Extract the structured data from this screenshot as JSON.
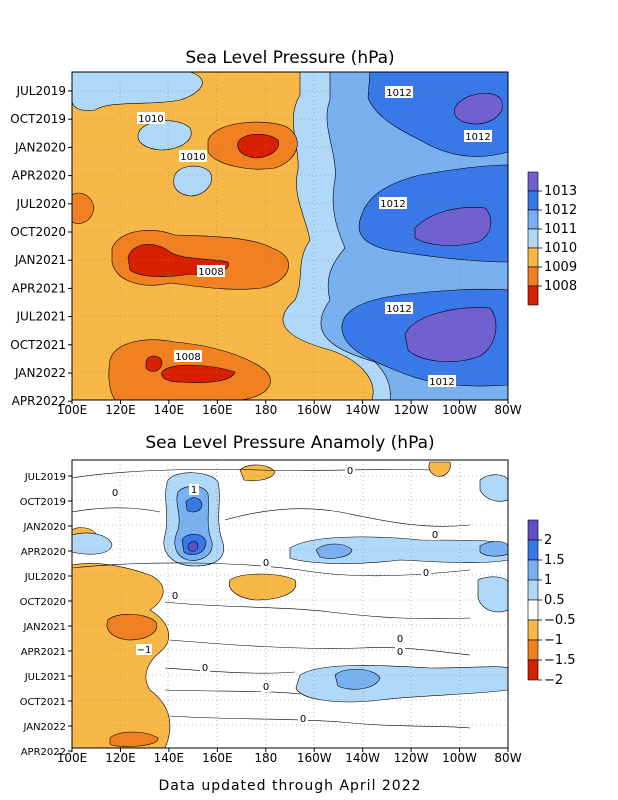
{
  "footer": "Data updated through April 2022",
  "charts": [
    {
      "title": "Sea Level Pressure (hPa)",
      "y_labels": [
        "JUL2019",
        "OCT2019",
        "JAN2020",
        "APR2020",
        "JUL2020",
        "OCT2020",
        "JAN2021",
        "APR2021",
        "JUL2021",
        "OCT2021",
        "JAN2022",
        "APR2022"
      ],
      "x_labels": [
        "100E",
        "120E",
        "140E",
        "160E",
        "180",
        "160W",
        "140W",
        "120W",
        "100W",
        "80W"
      ],
      "colorbar": {
        "labels": [
          "1013",
          "1012",
          "1011",
          "1010",
          "1009",
          "1008"
        ],
        "colors": [
          "#7060d0",
          "#3878e8",
          "#78b0f0",
          "#b0d8f8",
          "#f8b848",
          "#f08020",
          "#d82000"
        ]
      },
      "contour_labels": [
        "1012",
        "1010",
        "1012",
        "1010",
        "1012",
        "1008",
        "1012",
        "1008",
        "1012"
      ]
    },
    {
      "title": "Sea Level Pressure Anamoly (hPa)",
      "y_labels": [
        "JUL2019",
        "OCT2019",
        "JAN2020",
        "APR2020",
        "JUL2020",
        "OCT2020",
        "JAN2021",
        "APR2021",
        "JUL2021",
        "OCT2021",
        "JAN2022",
        "APR2022"
      ],
      "x_labels": [
        "100E",
        "120E",
        "140E",
        "160E",
        "180",
        "160W",
        "140W",
        "120W",
        "100W",
        "80W"
      ],
      "colorbar": {
        "labels": [
          "2",
          "1.5",
          "1",
          "0.5",
          "−0.5",
          "−1",
          "−1.5",
          "−2"
        ],
        "colors": [
          "#6050c8",
          "#3878e8",
          "#78b0f0",
          "#b0d8f8",
          "#ffffff",
          "#f8b848",
          "#f08020",
          "#d82000"
        ]
      },
      "contour_labels": [
        "0",
        "0",
        "1",
        "0",
        "0",
        "0",
        "0",
        "0",
        "0",
        "−1",
        "0",
        "0",
        "0"
      ]
    }
  ],
  "chart_data": [
    {
      "type": "heatmap",
      "title": "Sea Level Pressure (hPa)",
      "x": [
        "100E",
        "120E",
        "140E",
        "160E",
        "180",
        "160W",
        "140W",
        "120W",
        "100W",
        "80W"
      ],
      "y": [
        "JUL2019",
        "OCT2019",
        "JAN2020",
        "APR2020",
        "JUL2020",
        "OCT2020",
        "JAN2021",
        "APR2021",
        "JUL2021",
        "OCT2021",
        "JAN2022",
        "APR2022"
      ],
      "legend_levels": [
        1008,
        1009,
        1010,
        1011,
        1012,
        1013
      ],
      "values": [
        [
          1010,
          1009,
          1009,
          1009,
          1009,
          1011,
          1011.5,
          1012,
          1012.5,
          1012
        ],
        [
          1010,
          1009.5,
          1010,
          1008.5,
          1009,
          1010.5,
          1011.5,
          1012,
          1012,
          1011.5
        ],
        [
          1009,
          1009,
          1009,
          1008.5,
          1009,
          1010,
          1011,
          1011.5,
          1011,
          1010.5
        ],
        [
          1009,
          1009,
          1010,
          1009,
          1009,
          1010,
          1011,
          1011.5,
          1011.5,
          1011
        ],
        [
          1009,
          1009,
          1009,
          1009,
          1009,
          1010,
          1011,
          1012,
          1012.5,
          1012
        ],
        [
          1009,
          1008.5,
          1008.5,
          1009,
          1009,
          1010,
          1011,
          1012,
          1012.5,
          1012
        ],
        [
          1009,
          1008,
          1008,
          1008.5,
          1009,
          1010,
          1011,
          1011.5,
          1011,
          1011
        ],
        [
          1009,
          1009,
          1009,
          1009,
          1009.5,
          1010,
          1011,
          1011.5,
          1011,
          1010.5
        ],
        [
          1009,
          1009,
          1009,
          1009,
          1010,
          1011,
          1012,
          1012.5,
          1013,
          1012.5
        ],
        [
          1009,
          1009,
          1009,
          1009,
          1009.5,
          1010.5,
          1012,
          1012.5,
          1012.5,
          1012
        ],
        [
          1009,
          1008.5,
          1008,
          1008.5,
          1009,
          1010,
          1011,
          1011.5,
          1011,
          1011
        ],
        [
          1009,
          1008.5,
          1008.5,
          1009,
          1009,
          1010,
          1010.5,
          1011,
          1010.5,
          1010
        ]
      ]
    },
    {
      "type": "heatmap",
      "title": "Sea Level Pressure Anamoly (hPa)",
      "x": [
        "100E",
        "120E",
        "140E",
        "160E",
        "180",
        "160W",
        "140W",
        "120W",
        "100W",
        "80W"
      ],
      "y": [
        "JUL2019",
        "OCT2019",
        "JAN2020",
        "APR2020",
        "JUL2020",
        "OCT2020",
        "JAN2021",
        "APR2021",
        "JUL2021",
        "OCT2021",
        "JAN2022",
        "APR2022"
      ],
      "legend_levels": [
        -2,
        -1.5,
        -1,
        -0.5,
        0.5,
        1,
        1.5,
        2
      ],
      "values": [
        [
          0,
          0,
          0,
          -0.5,
          0,
          0,
          0,
          0,
          0,
          0.5
        ],
        [
          0.5,
          0,
          0,
          1.2,
          0,
          0,
          0,
          0,
          0,
          0.5
        ],
        [
          0.5,
          0.3,
          0.3,
          1.8,
          0,
          0,
          0,
          0,
          0.3,
          0.3
        ],
        [
          0.5,
          0,
          0.3,
          2.1,
          0.3,
          0,
          0.7,
          0.5,
          0.6,
          0.5
        ],
        [
          -0.5,
          -0.5,
          -0.3,
          0,
          -0.6,
          0,
          0,
          0,
          0,
          0.5
        ],
        [
          -0.8,
          -0.8,
          -0.5,
          0,
          0,
          0,
          0,
          0,
          0,
          0.5
        ],
        [
          -0.8,
          -1,
          -1.2,
          -0.5,
          0,
          0,
          0,
          0,
          0,
          0
        ],
        [
          -0.7,
          -1,
          -0.7,
          0,
          0,
          0,
          0,
          0,
          0,
          0
        ],
        [
          -0.5,
          -0.5,
          -0.5,
          0,
          0,
          0,
          0.6,
          0.5,
          0.6,
          0.3
        ],
        [
          -0.5,
          -0.5,
          -0.5,
          0,
          0,
          0,
          0.5,
          0.5,
          0.5,
          0.3
        ],
        [
          -0.5,
          -0.8,
          -0.5,
          0,
          0,
          0,
          0,
          0,
          0,
          0
        ],
        [
          -0.8,
          -1,
          -0.8,
          0,
          0,
          0,
          0,
          0,
          0,
          0
        ]
      ]
    }
  ]
}
